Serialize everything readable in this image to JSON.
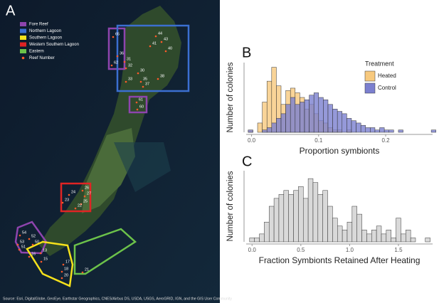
{
  "map": {
    "panel": "A",
    "legend": [
      {
        "label": "Fore Reef",
        "color": "#8e44ad"
      },
      {
        "label": "Northern Lagoon",
        "color": "#3b6fd1"
      },
      {
        "label": "Southern Lagoon",
        "color": "#f5e11b"
      },
      {
        "label": "Western Southern Lagoon",
        "color": "#e02424"
      },
      {
        "label": "Eastern",
        "color": "#6cc24a"
      },
      {
        "label": "Reef Number",
        "color": "#ff5a2a"
      }
    ],
    "reef_labels": [
      "65",
      "44",
      "43",
      "41",
      "40",
      "36",
      "31",
      "32",
      "62",
      "30",
      "33",
      "35",
      "37",
      "38",
      "61",
      "60",
      "26",
      "24",
      "27",
      "23",
      "25",
      "22",
      "54",
      "52",
      "53",
      "51",
      "50",
      "13",
      "16",
      "15",
      "17",
      "18",
      "20",
      "21"
    ],
    "source": "Source: Esri, DigitalGlobe, GeoEye, Earthstar Geographics, CNES/Airbus DS, USDA, USGS, AeroGRID, IGN, and the GIS User Community"
  },
  "chart_data": [
    {
      "type": "histogram",
      "panel": "B",
      "x_label": "Proportion symbionts",
      "y_label": "Number of colonies",
      "legend_title": "Treatment",
      "bins": [
        -0.005,
        0.002,
        0.009,
        0.016,
        0.023,
        0.03,
        0.037,
        0.044,
        0.051,
        0.058,
        0.065,
        0.072,
        0.079,
        0.086,
        0.093,
        0.1,
        0.107,
        0.114,
        0.121,
        0.128,
        0.135,
        0.142,
        0.149,
        0.156,
        0.163,
        0.17,
        0.177,
        0.184,
        0.191,
        0.198,
        0.205,
        0.212,
        0.219,
        0.226,
        0.233,
        0.24,
        0.247,
        0.254,
        0.261,
        0.268,
        0.275
      ],
      "series": [
        {
          "name": "Heated",
          "color": "#f7c97e",
          "values": [
            1,
            0,
            4,
            13,
            22,
            28,
            20,
            12,
            18,
            19,
            17,
            15,
            10,
            12,
            8,
            5,
            4,
            2,
            1,
            1,
            0,
            1,
            0,
            0,
            0,
            0,
            0,
            0,
            0,
            0,
            0,
            0,
            0,
            0,
            0,
            0,
            0,
            0,
            0,
            0
          ]
        },
        {
          "name": "Control",
          "color": "#7b7fcf",
          "values": [
            1,
            0,
            0,
            1,
            2,
            4,
            6,
            8,
            12,
            15,
            12,
            13,
            14,
            16,
            17,
            15,
            14,
            12,
            10,
            9,
            8,
            6,
            5,
            4,
            3,
            2,
            2,
            1,
            2,
            1,
            1,
            0,
            1,
            0,
            0,
            0,
            0,
            0,
            0,
            1
          ]
        }
      ],
      "xlim": [
        -0.008,
        0.27
      ],
      "ylim": [
        0,
        30
      ],
      "xticks": [
        {
          "value": 0,
          "label": "0.0"
        },
        0.1,
        0.2
      ]
    },
    {
      "type": "histogram",
      "panel": "C",
      "x_label": "Fraction Symbionts Retained After Heating",
      "y_label": "Number of colonies",
      "bins": [
        -0.025,
        0.025,
        0.075,
        0.125,
        0.175,
        0.225,
        0.275,
        0.325,
        0.375,
        0.425,
        0.475,
        0.525,
        0.575,
        0.625,
        0.675,
        0.725,
        0.775,
        0.825,
        0.875,
        0.925,
        0.975,
        1.025,
        1.075,
        1.125,
        1.175,
        1.225,
        1.275,
        1.325,
        1.375,
        1.425,
        1.475,
        1.525,
        1.575,
        1.625,
        1.675,
        1.725,
        1.775,
        1.825
      ],
      "series": [
        {
          "name": "Colonies",
          "color": "#d9d9d9",
          "values": [
            1,
            1,
            2,
            5,
            9,
            11,
            12,
            13,
            12,
            13,
            14,
            11,
            16,
            15,
            12,
            13,
            9,
            6,
            4,
            3,
            5,
            9,
            7,
            3,
            2,
            3,
            4,
            2,
            3,
            1,
            6,
            2,
            3,
            1,
            0,
            0,
            1
          ]
        }
      ],
      "xlim": [
        -0.06,
        1.85
      ],
      "ylim": [
        0,
        18
      ],
      "xticks": [
        {
          "value": 0,
          "label": "0.0"
        },
        0.5,
        {
          "value": 1,
          "label": "1.0"
        },
        1.5
      ]
    }
  ]
}
